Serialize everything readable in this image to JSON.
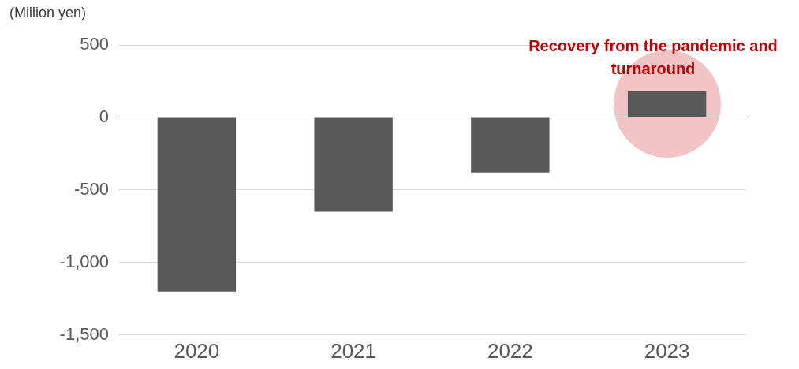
{
  "chart_data": {
    "type": "bar",
    "ylabel": "(Million yen)",
    "categories": [
      "2020",
      "2021",
      "2022",
      "2023"
    ],
    "values": [
      -1200,
      -650,
      -380,
      180
    ],
    "color": "#595959",
    "ylim": [
      -1500,
      500
    ],
    "yticks": [
      {
        "value": -1500,
        "label": "-1,500"
      },
      {
        "value": -1000,
        "label": "-1,000"
      },
      -500,
      0,
      500
    ],
    "grid": "y",
    "legend": false,
    "annotations": [
      {
        "text": "Recovery from the pandemic and turnaround",
        "x": "2023",
        "y": 180
      }
    ]
  }
}
